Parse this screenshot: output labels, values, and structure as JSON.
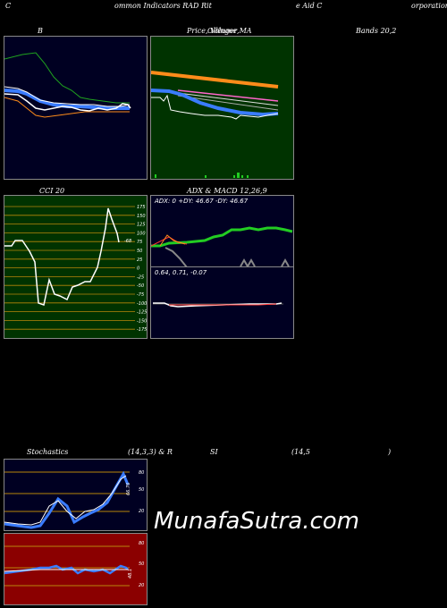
{
  "header": {
    "c1": "C",
    "c2": "ommon  Indicators RAD Rit",
    "c3": "e  Aid C",
    "c4": "orporation"
  },
  "row1": {
    "bb_label": "B",
    "price_label": "Price,  Volume,",
    "price_label_overlap": "Ollinger MA",
    "bands_label": "Bands 20,2"
  },
  "row2": {
    "cci_label": "CCI 20",
    "adx_macd_label": "ADX  & MACD 12,26,9",
    "cci_value": "-68",
    "cci_ticks": [
      "175",
      "150",
      "125",
      "100",
      "75",
      "50",
      "25",
      "0",
      "-25",
      "-50",
      "-75",
      "-100",
      "-125",
      "-150",
      "-175"
    ],
    "adx_text": "ADX: 0  +DY: 46.67 -DY: 46.67",
    "macd_text": "0.64,  0.71,  -0.07"
  },
  "row3": {
    "stoch_label": "Stochastics",
    "stoch_params": "(14,3,3) & R",
    "rsi_label": "SI",
    "rsi_params": "(14,5",
    "rsi_close": ")",
    "stoch_ticks": [
      "80",
      "50",
      "20"
    ],
    "stoch_value": "66.76",
    "rsi_ticks": [
      "80",
      "50",
      "20"
    ],
    "rsi_value": "48.1"
  },
  "watermark": "MunafaSutra.com",
  "colors": {
    "panel_navy": "#000022",
    "panel_green": "#003300",
    "panel_red": "#8b0000",
    "blue": "#3a7cff",
    "orange": "#ff8c1a",
    "green": "#22cc22",
    "pink": "#ff66cc"
  }
}
